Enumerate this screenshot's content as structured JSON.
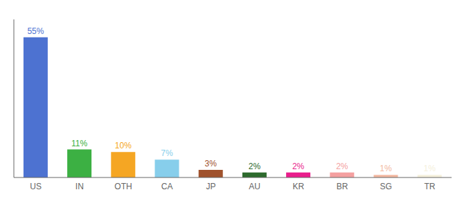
{
  "chart_data": {
    "type": "bar",
    "categories": [
      "US",
      "IN",
      "OTH",
      "CA",
      "JP",
      "AU",
      "KR",
      "BR",
      "SG",
      "TR"
    ],
    "values": [
      55,
      11,
      10,
      7,
      3,
      2,
      2,
      2,
      1,
      1
    ],
    "value_labels": [
      "55%",
      "11%",
      "10%",
      "7%",
      "3%",
      "2%",
      "2%",
      "2%",
      "1%",
      "1%"
    ],
    "colors": [
      "#4d72d1",
      "#3cb043",
      "#f5a623",
      "#87ceeb",
      "#a0522d",
      "#2d6a2d",
      "#e91e8c",
      "#f4a0a0",
      "#f2b8a0",
      "#f5f0dc"
    ],
    "ylim": [
      0,
      62
    ],
    "data_labels": true,
    "tick_labels": "x"
  }
}
